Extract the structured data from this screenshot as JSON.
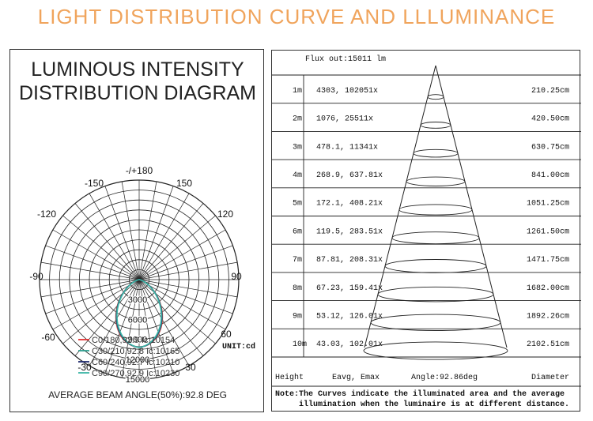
{
  "page_title": "LIGHT DISTRIBUTION CURVE AND LLLUMINANCE",
  "colors": {
    "title": "#f0a45c",
    "c0": "#e03030",
    "c30": "#2e9e8e",
    "c60": "#1f2b6e",
    "c90": "#3ab5a5"
  },
  "chart_data": [
    {
      "type": "polar",
      "title_line1": "LUMINOUS INTENSITY",
      "title_line2": "DISTRIBUTION DIAGRAM",
      "angle_labels": [
        "-/+180",
        "-150",
        "150",
        "-120",
        "120",
        "-90",
        "90",
        "-60",
        "60",
        "-30",
        "30",
        "0"
      ],
      "radial_labels": [
        "3000",
        "6000",
        "9000",
        "12000",
        "15000"
      ],
      "unit": "UNIT:cd",
      "series": [
        {
          "name": "C0/180,92.9 Ic:10154",
          "color": "#e03030"
        },
        {
          "name": "C30/210,92.8 Ic:10165",
          "color": "#2e9e8e"
        },
        {
          "name": "C60/240,92.7 Ic:10210",
          "color": "#1f2b6e"
        },
        {
          "name": "C90/270,92.9 Ic:10230",
          "color": "#3ab5a5"
        }
      ],
      "average_beam_angle": "AVERAGE BEAM ANGLE(50%):92.8 DEG"
    },
    {
      "type": "table",
      "flux": "Flux out:15011 lm",
      "rows": [
        {
          "height": "1m",
          "values": "4303, 102051x",
          "diameter": "210.25cm"
        },
        {
          "height": "2m",
          "values": "1076, 25511x",
          "diameter": "420.50cm"
        },
        {
          "height": "3m",
          "values": "478.1, 11341x",
          "diameter": "630.75cm"
        },
        {
          "height": "4m",
          "values": "268.9, 637.81x",
          "diameter": "841.00cm"
        },
        {
          "height": "5m",
          "values": "172.1, 408.21x",
          "diameter": "1051.25cm"
        },
        {
          "height": "6m",
          "values": "119.5, 283.51x",
          "diameter": "1261.50cm"
        },
        {
          "height": "7m",
          "values": "87.81, 208.31x",
          "diameter": "1471.75cm"
        },
        {
          "height": "8m",
          "values": "67.23, 159.41x",
          "diameter": "1682.00cm"
        },
        {
          "height": "9m",
          "values": "53.12, 126.01x",
          "diameter": "1892.26cm"
        },
        {
          "height": "10m",
          "values": "43.03, 102.01x",
          "diameter": "2102.51cm"
        }
      ],
      "footer": {
        "height": "Height",
        "eavg": "Eavg, Emax",
        "angle": "Angle:92.86deg",
        "diameter": "Diameter"
      },
      "note_line1": "Note:The Curves indicate the illuminated area and the average",
      "note_line2": "illumination when the luminaire is at different distance."
    }
  ]
}
